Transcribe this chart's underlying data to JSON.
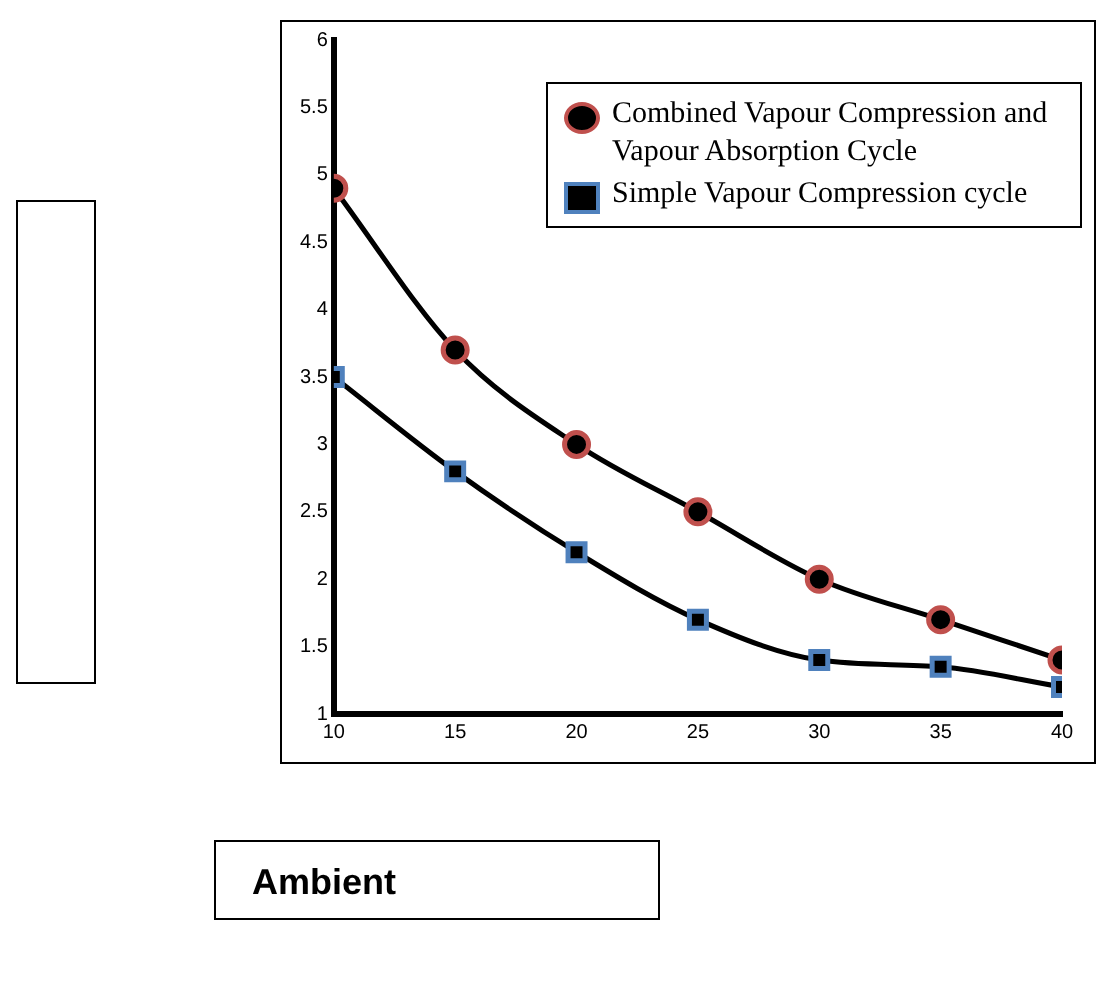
{
  "chart_data": {
    "type": "line",
    "xlabel": "Ambient",
    "x": [
      10,
      15,
      20,
      25,
      30,
      35,
      40
    ],
    "xlim": [
      10,
      40
    ],
    "xticks": [
      10,
      15,
      20,
      25,
      30,
      35,
      40
    ],
    "ylim": [
      1,
      6
    ],
    "yticks": [
      1,
      1.5,
      2,
      2.5,
      3,
      3.5,
      4,
      4.5,
      5,
      5.5,
      6
    ],
    "grid": false,
    "legend": "top right",
    "series": [
      {
        "name": "Combined Vapour Compression and Vapour Absorption Cycle",
        "color": "#000000",
        "marker": "circle",
        "values": [
          4.9,
          3.7,
          3.0,
          2.5,
          2.0,
          1.7,
          1.4
        ]
      },
      {
        "name": "Simple Vapour Compression cycle",
        "color": "#000000",
        "marker": "square",
        "values": [
          3.5,
          2.8,
          2.2,
          1.7,
          1.4,
          1.35,
          1.2
        ]
      }
    ]
  }
}
